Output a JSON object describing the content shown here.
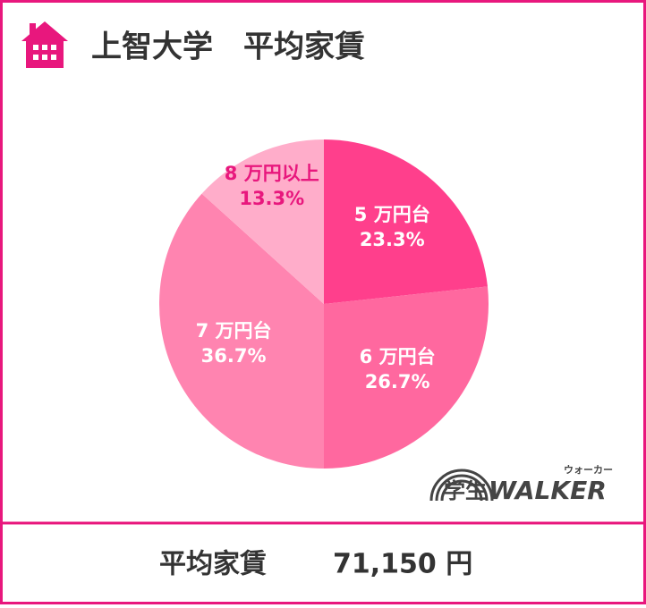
{
  "header": {
    "title": "上智大学　平均家賃"
  },
  "chart_data": {
    "type": "pie",
    "categories": [
      "5 万円台",
      "6 万円台",
      "7 万円台",
      "8 万円以上"
    ],
    "values": [
      23.3,
      26.7,
      36.7,
      13.3
    ],
    "value_labels": [
      "23.3%",
      "26.7%",
      "36.7%",
      "13.3%"
    ],
    "colors": [
      "#ff3f8c",
      "#ff689f",
      "#ff84b0",
      "#ffadca"
    ],
    "label_colors": [
      "#ffffff",
      "#ffffff",
      "#ffffff",
      "#e8177d"
    ]
  },
  "logo": {
    "main": "学生",
    "brand": "WALKER",
    "ruby": "ウォーカー"
  },
  "footer": {
    "label": "平均家賃",
    "amount": "71,150 円"
  }
}
